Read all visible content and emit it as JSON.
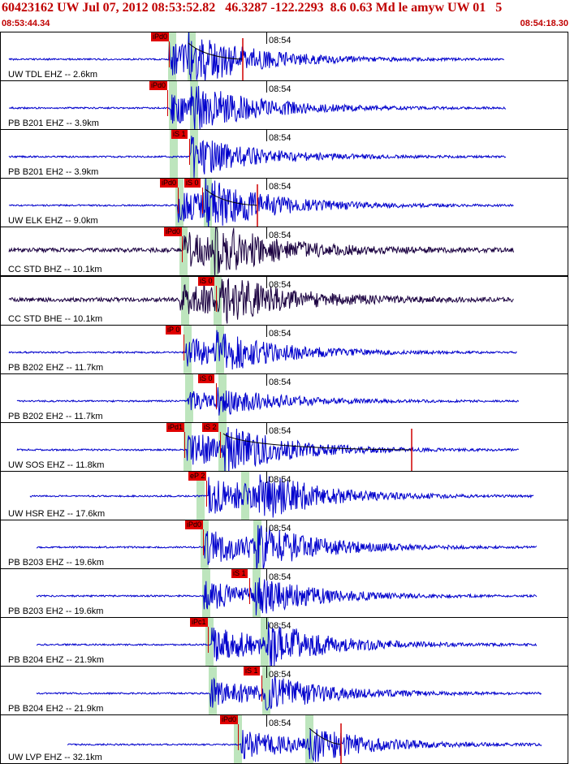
{
  "header": {
    "title": "60423162 UW Jul 07, 2012 08:53:52.82   46.3287 -122.2293  8.6 0.63 Md le amyw UW 01   5",
    "start_time": "08:53:44.34",
    "end_time": "08:54:18.30"
  },
  "colors": {
    "header": "#c00000",
    "trace_blue": "#0000cc",
    "trace_dark": "#1a0040",
    "pick": "#e00000",
    "band": "#bde5bd"
  },
  "panels": [
    {
      "station": "UW TDL EHZ -- 2.6km",
      "time_label": "08:54",
      "picks": [
        "iPd0"
      ],
      "dark": false
    },
    {
      "station": "PB B201 EHZ -- 3.9km",
      "time_label": "08:54",
      "picks": [
        "iPd0"
      ],
      "dark": false
    },
    {
      "station": "PB B201 EH2 -- 3.9km",
      "time_label": "08:54",
      "picks": [
        "iS 1"
      ],
      "dark": false
    },
    {
      "station": "UW ELK EHZ -- 9.0km",
      "time_label": "08:54",
      "picks": [
        "iPd0",
        "iS 0"
      ],
      "dark": false
    },
    {
      "station": "CC STD BHZ -- 10.1km",
      "time_label": "08:54",
      "picks": [
        "iPd0"
      ],
      "dark": true
    },
    {
      "station": "CC STD BHE -- 10.1km",
      "time_label": "08:54",
      "picks": [
        "iS 0"
      ],
      "dark": true
    },
    {
      "station": "PB B202 EHZ -- 11.7km",
      "time_label": "08:54",
      "picks": [
        "iP 0"
      ],
      "dark": false
    },
    {
      "station": "PB B202 EH2 -- 11.7km",
      "time_label": "08:54",
      "picks": [
        "iS 0"
      ],
      "dark": false
    },
    {
      "station": "UW SOS EHZ -- 11.8km",
      "time_label": "08:54",
      "picks": [
        "iPd1",
        "iS 2"
      ],
      "dark": false
    },
    {
      "station": "UW HSR EHZ -- 17.6km",
      "time_label": "08:54",
      "picks": [
        "eP 2"
      ],
      "dark": false
    },
    {
      "station": "PB B203 EHZ -- 19.6km",
      "time_label": "08:54",
      "picks": [
        "iPd0"
      ],
      "dark": false
    },
    {
      "station": "PB B203 EH2 -- 19.6km",
      "time_label": "08:54",
      "picks": [
        "iS 1"
      ],
      "dark": false
    },
    {
      "station": "PB B204 EHZ -- 21.9km",
      "time_label": "08:54",
      "picks": [
        "iPc1"
      ],
      "dark": false
    },
    {
      "station": "PB B204 EH2 -- 21.9km",
      "time_label": "08:54",
      "picks": [
        "iS 1"
      ],
      "dark": false
    },
    {
      "station": "UW LVP EHZ -- 32.1km",
      "time_label": "08:54",
      "picks": [
        "iPd0"
      ],
      "dark": false
    }
  ]
}
